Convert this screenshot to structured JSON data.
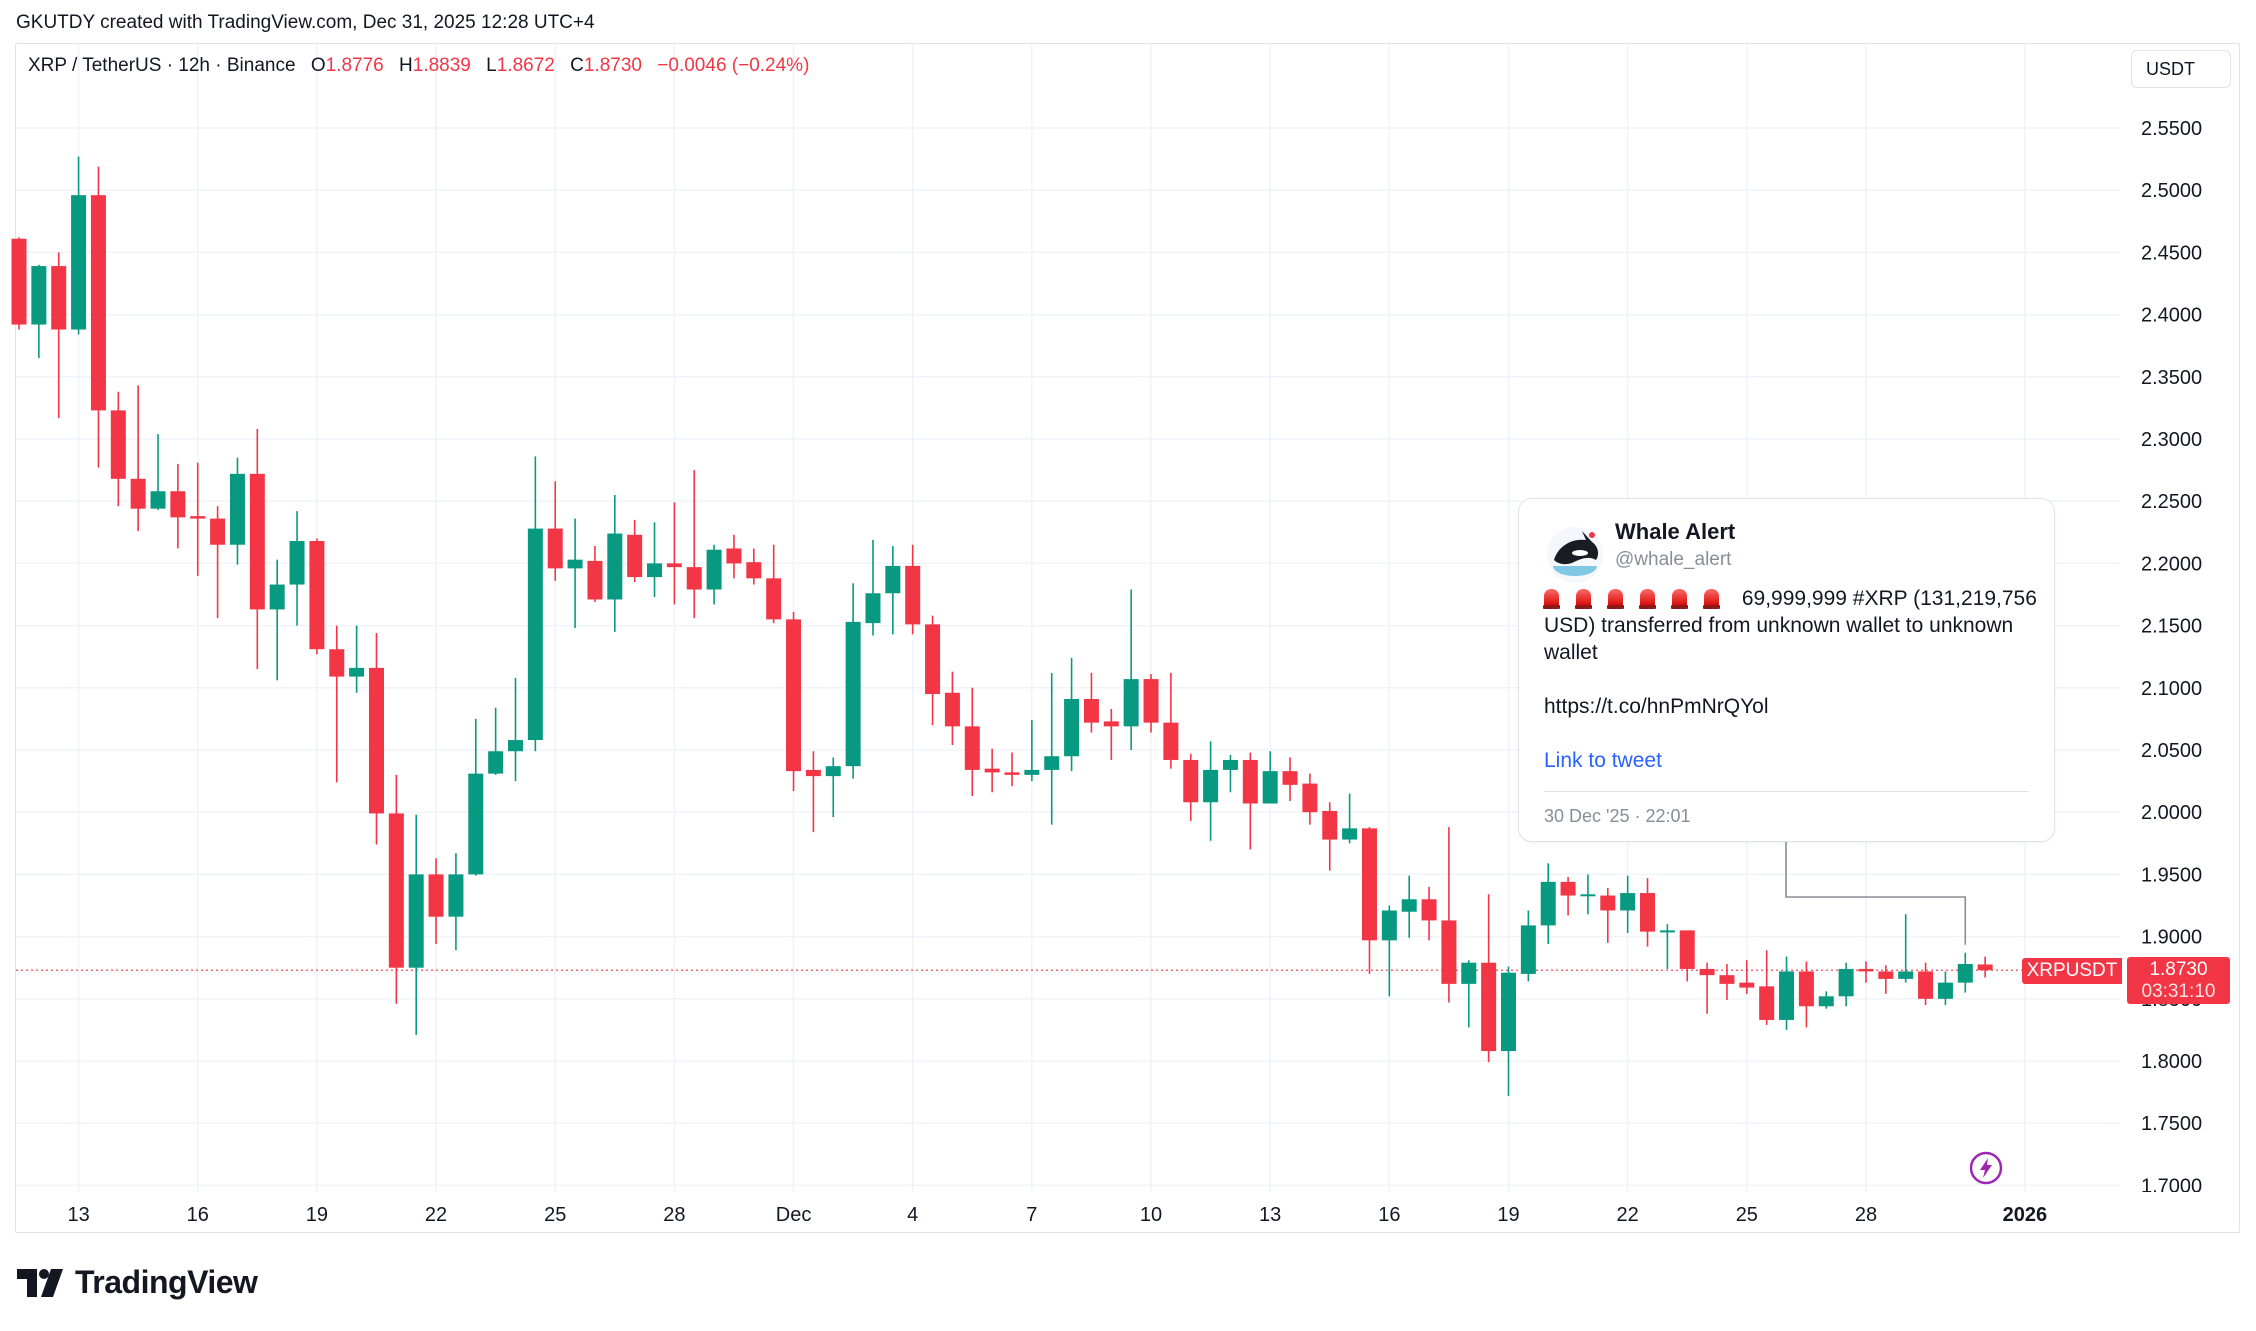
{
  "credit": "GKUTDY created with TradingView.com, Dec 31, 2025 12:28 UTC+4",
  "legend": {
    "symbol": "XRP / TetherUS · 12h · Binance",
    "o_label": "O",
    "o": "1.8776",
    "h_label": "H",
    "h": "1.8839",
    "l_label": "L",
    "l": "1.8672",
    "c_label": "C",
    "c": "1.8730",
    "change": "−0.0046 (−0.24%)"
  },
  "currency_button": "USDT",
  "last_price": {
    "symbol": "XRPUSDT",
    "price": "1.8730",
    "countdown": "03:31:10",
    "value": 1.873
  },
  "colors": {
    "up": "#089981",
    "down": "#f23645",
    "grid": "#f0f3fa",
    "link": "#2962ff",
    "bolt": "#9c27b0"
  },
  "tweet": {
    "name": "Whale Alert",
    "handle": "@whale_alert",
    "alert_icons": [
      "siren-icon",
      "siren-icon",
      "siren-icon",
      "siren-icon",
      "siren-icon",
      "siren-icon"
    ],
    "body": "69,999,999 #XRP (131,219,756 USD) transferred from unknown wallet to unknown wallet",
    "url": "https://t.co/hnPmNrQYol",
    "link_label": "Link to tweet",
    "timestamp": "30 Dec '25 · 22:01"
  },
  "brand": "TradingView",
  "chart_data": {
    "type": "candlestick",
    "title": "XRP / TetherUS · 12h · Binance",
    "interval": "12h",
    "ylim": [
      1.7,
      2.55
    ],
    "grid": true,
    "price_axis": {
      "labels": [
        "2.5500",
        "2.5000",
        "2.4500",
        "2.4000",
        "2.3500",
        "2.3000",
        "2.2500",
        "2.2000",
        "2.1500",
        "2.1000",
        "2.0500",
        "2.0000",
        "1.9500",
        "1.9000",
        "1.8500",
        "1.8000",
        "1.7500",
        "1.7000"
      ]
    },
    "time_axis": {
      "labels": [
        {
          "label": "13",
          "date": "2025-11-13 00:00"
        },
        {
          "label": "16",
          "date": "2025-11-16 00:00"
        },
        {
          "label": "19",
          "date": "2025-11-19 00:00"
        },
        {
          "label": "22",
          "date": "2025-11-22 00:00"
        },
        {
          "label": "25",
          "date": "2025-11-25 00:00"
        },
        {
          "label": "28",
          "date": "2025-11-28 00:00"
        },
        {
          "label": "Dec",
          "date": "2025-12-01 00:00"
        },
        {
          "label": "4",
          "date": "2025-12-04 00:00"
        },
        {
          "label": "7",
          "date": "2025-12-07 00:00"
        },
        {
          "label": "10",
          "date": "2025-12-10 00:00"
        },
        {
          "label": "13",
          "date": "2025-12-13 00:00"
        },
        {
          "label": "16",
          "date": "2025-12-16 00:00"
        },
        {
          "label": "19",
          "date": "2025-12-19 00:00"
        },
        {
          "label": "22",
          "date": "2025-12-22 00:00"
        },
        {
          "label": "25",
          "date": "2025-12-25 00:00"
        },
        {
          "label": "28",
          "date": "2025-12-28 00:00"
        },
        {
          "label": "2026",
          "date": "2026-01-01 00:00",
          "bold": true
        }
      ]
    },
    "columns": [
      "time",
      "open",
      "high",
      "low",
      "close"
    ],
    "candles": [
      [
        "2025-11-11 12:00",
        2.461,
        2.462,
        2.388,
        2.392
      ],
      [
        "2025-11-12 00:00",
        2.392,
        2.44,
        2.365,
        2.439
      ],
      [
        "2025-11-12 12:00",
        2.439,
        2.45,
        2.317,
        2.388
      ],
      [
        "2025-11-13 00:00",
        2.388,
        2.527,
        2.384,
        2.496
      ],
      [
        "2025-11-13 12:00",
        2.496,
        2.519,
        2.277,
        2.323
      ],
      [
        "2025-11-14 00:00",
        2.323,
        2.338,
        2.246,
        2.268
      ],
      [
        "2025-11-14 12:00",
        2.268,
        2.343,
        2.226,
        2.244
      ],
      [
        "2025-11-15 00:00",
        2.244,
        2.304,
        2.243,
        2.258
      ],
      [
        "2025-11-15 12:00",
        2.258,
        2.28,
        2.212,
        2.237
      ],
      [
        "2025-11-16 00:00",
        2.238,
        2.281,
        2.19,
        2.236
      ],
      [
        "2025-11-16 12:00",
        2.236,
        2.246,
        2.156,
        2.215
      ],
      [
        "2025-11-17 00:00",
        2.215,
        2.285,
        2.199,
        2.272
      ],
      [
        "2025-11-17 12:00",
        2.272,
        2.308,
        2.115,
        2.163
      ],
      [
        "2025-11-18 00:00",
        2.163,
        2.203,
        2.106,
        2.183
      ],
      [
        "2025-11-18 12:00",
        2.183,
        2.242,
        2.15,
        2.218
      ],
      [
        "2025-11-19 00:00",
        2.218,
        2.22,
        2.127,
        2.131
      ],
      [
        "2025-11-19 12:00",
        2.131,
        2.15,
        2.024,
        2.109
      ],
      [
        "2025-11-20 00:00",
        2.109,
        2.15,
        2.096,
        2.116
      ],
      [
        "2025-11-20 12:00",
        2.116,
        2.144,
        1.974,
        1.999
      ],
      [
        "2025-11-21 00:00",
        1.999,
        2.03,
        1.846,
        1.875
      ],
      [
        "2025-11-21 12:00",
        1.875,
        1.998,
        1.821,
        1.95
      ],
      [
        "2025-11-22 00:00",
        1.95,
        1.963,
        1.894,
        1.916
      ],
      [
        "2025-11-22 12:00",
        1.916,
        1.967,
        1.889,
        1.95
      ],
      [
        "2025-11-23 00:00",
        1.95,
        2.075,
        1.949,
        2.031
      ],
      [
        "2025-11-23 12:00",
        2.031,
        2.084,
        2.03,
        2.049
      ],
      [
        "2025-11-24 00:00",
        2.049,
        2.108,
        2.025,
        2.058
      ],
      [
        "2025-11-24 12:00",
        2.058,
        2.286,
        2.049,
        2.228
      ],
      [
        "2025-11-25 00:00",
        2.228,
        2.266,
        2.186,
        2.196
      ],
      [
        "2025-11-25 12:00",
        2.196,
        2.236,
        2.148,
        2.203
      ],
      [
        "2025-11-26 00:00",
        2.202,
        2.214,
        2.169,
        2.171
      ],
      [
        "2025-11-26 12:00",
        2.171,
        2.255,
        2.145,
        2.224
      ],
      [
        "2025-11-27 00:00",
        2.223,
        2.235,
        2.185,
        2.189
      ],
      [
        "2025-11-27 12:00",
        2.189,
        2.233,
        2.173,
        2.2
      ],
      [
        "2025-11-28 00:00",
        2.2,
        2.249,
        2.167,
        2.197
      ],
      [
        "2025-11-28 12:00",
        2.197,
        2.275,
        2.156,
        2.179
      ],
      [
        "2025-11-29 00:00",
        2.179,
        2.215,
        2.167,
        2.211
      ],
      [
        "2025-11-29 12:00",
        2.212,
        2.223,
        2.188,
        2.2
      ],
      [
        "2025-11-30 00:00",
        2.201,
        2.212,
        2.183,
        2.188
      ],
      [
        "2025-11-30 12:00",
        2.188,
        2.215,
        2.152,
        2.155
      ],
      [
        "2025-12-01 00:00",
        2.155,
        2.161,
        2.017,
        2.033
      ],
      [
        "2025-12-01 12:00",
        2.034,
        2.049,
        1.984,
        2.029
      ],
      [
        "2025-12-02 00:00",
        2.029,
        2.044,
        1.996,
        2.037
      ],
      [
        "2025-12-02 12:00",
        2.037,
        2.184,
        2.027,
        2.153
      ],
      [
        "2025-12-03 00:00",
        2.152,
        2.219,
        2.142,
        2.176
      ],
      [
        "2025-12-03 12:00",
        2.176,
        2.214,
        2.143,
        2.198
      ],
      [
        "2025-12-04 00:00",
        2.198,
        2.215,
        2.143,
        2.151
      ],
      [
        "2025-12-04 12:00",
        2.151,
        2.158,
        2.07,
        2.095
      ],
      [
        "2025-12-05 00:00",
        2.096,
        2.113,
        2.054,
        2.069
      ],
      [
        "2025-12-05 12:00",
        2.069,
        2.1,
        2.013,
        2.034
      ],
      [
        "2025-12-06 00:00",
        2.035,
        2.051,
        2.016,
        2.032
      ],
      [
        "2025-12-06 12:00",
        2.032,
        2.048,
        2.021,
        2.03
      ],
      [
        "2025-12-07 00:00",
        2.03,
        2.074,
        2.025,
        2.034
      ],
      [
        "2025-12-07 12:00",
        2.034,
        2.112,
        1.99,
        2.045
      ],
      [
        "2025-12-08 00:00",
        2.045,
        2.124,
        2.033,
        2.091
      ],
      [
        "2025-12-08 12:00",
        2.091,
        2.112,
        2.064,
        2.072
      ],
      [
        "2025-12-09 00:00",
        2.073,
        2.083,
        2.042,
        2.069
      ],
      [
        "2025-12-09 12:00",
        2.069,
        2.179,
        2.05,
        2.107
      ],
      [
        "2025-12-10 00:00",
        2.107,
        2.111,
        2.064,
        2.072
      ],
      [
        "2025-12-10 12:00",
        2.072,
        2.112,
        2.035,
        2.042
      ],
      [
        "2025-12-11 00:00",
        2.042,
        2.047,
        1.993,
        2.008
      ],
      [
        "2025-12-11 12:00",
        2.008,
        2.057,
        1.977,
        2.034
      ],
      [
        "2025-12-12 00:00",
        2.034,
        2.046,
        2.016,
        2.042
      ],
      [
        "2025-12-12 12:00",
        2.042,
        2.048,
        1.97,
        2.007
      ],
      [
        "2025-12-13 00:00",
        2.007,
        2.049,
        2.007,
        2.033
      ],
      [
        "2025-12-13 12:00",
        2.033,
        2.044,
        2.009,
        2.022
      ],
      [
        "2025-12-14 00:00",
        2.023,
        2.031,
        1.99,
        2.0
      ],
      [
        "2025-12-14 12:00",
        2.001,
        2.008,
        1.953,
        1.978
      ],
      [
        "2025-12-15 00:00",
        1.978,
        2.015,
        1.975,
        1.987
      ],
      [
        "2025-12-15 12:00",
        1.987,
        1.988,
        1.87,
        1.897
      ],
      [
        "2025-12-16 00:00",
        1.897,
        1.925,
        1.852,
        1.921
      ],
      [
        "2025-12-16 12:00",
        1.92,
        1.949,
        1.899,
        1.93
      ],
      [
        "2025-12-17 00:00",
        1.93,
        1.94,
        1.897,
        1.913
      ],
      [
        "2025-12-17 12:00",
        1.913,
        1.988,
        1.847,
        1.862
      ],
      [
        "2025-12-18 00:00",
        1.862,
        1.881,
        1.827,
        1.879
      ],
      [
        "2025-12-18 12:00",
        1.879,
        1.934,
        1.799,
        1.808
      ],
      [
        "2025-12-19 00:00",
        1.808,
        1.876,
        1.772,
        1.871
      ],
      [
        "2025-12-19 12:00",
        1.87,
        1.921,
        1.864,
        1.909
      ],
      [
        "2025-12-20 00:00",
        1.909,
        1.959,
        1.894,
        1.944
      ],
      [
        "2025-12-20 12:00",
        1.944,
        1.948,
        1.917,
        1.933
      ],
      [
        "2025-12-21 00:00",
        1.933,
        1.95,
        1.918,
        1.934
      ],
      [
        "2025-12-21 12:00",
        1.933,
        1.939,
        1.895,
        1.921
      ],
      [
        "2025-12-22 00:00",
        1.921,
        1.949,
        1.903,
        1.935
      ],
      [
        "2025-12-22 12:00",
        1.935,
        1.947,
        1.892,
        1.904
      ],
      [
        "2025-12-23 00:00",
        1.904,
        1.91,
        1.874,
        1.905
      ],
      [
        "2025-12-23 12:00",
        1.905,
        1.905,
        1.864,
        1.874
      ],
      [
        "2025-12-24 00:00",
        1.874,
        1.879,
        1.838,
        1.869
      ],
      [
        "2025-12-24 12:00",
        1.869,
        1.878,
        1.849,
        1.862
      ],
      [
        "2025-12-25 00:00",
        1.863,
        1.881,
        1.854,
        1.859
      ],
      [
        "2025-12-25 12:00",
        1.86,
        1.889,
        1.829,
        1.833
      ],
      [
        "2025-12-26 00:00",
        1.833,
        1.884,
        1.825,
        1.872
      ],
      [
        "2025-12-26 12:00",
        1.872,
        1.88,
        1.827,
        1.844
      ],
      [
        "2025-12-27 00:00",
        1.844,
        1.856,
        1.842,
        1.852
      ],
      [
        "2025-12-27 12:00",
        1.852,
        1.879,
        1.844,
        1.874
      ],
      [
        "2025-12-28 00:00",
        1.874,
        1.88,
        1.863,
        1.872
      ],
      [
        "2025-12-28 12:00",
        1.872,
        1.877,
        1.854,
        1.866
      ],
      [
        "2025-12-29 00:00",
        1.866,
        1.918,
        1.863,
        1.872
      ],
      [
        "2025-12-29 12:00",
        1.872,
        1.879,
        1.845,
        1.85
      ],
      [
        "2025-12-30 00:00",
        1.85,
        1.872,
        1.845,
        1.863
      ],
      [
        "2025-12-30 12:00",
        1.863,
        1.887,
        1.855,
        1.878
      ],
      [
        "2025-12-31 00:00",
        1.8776,
        1.8839,
        1.8672,
        1.873
      ]
    ]
  }
}
